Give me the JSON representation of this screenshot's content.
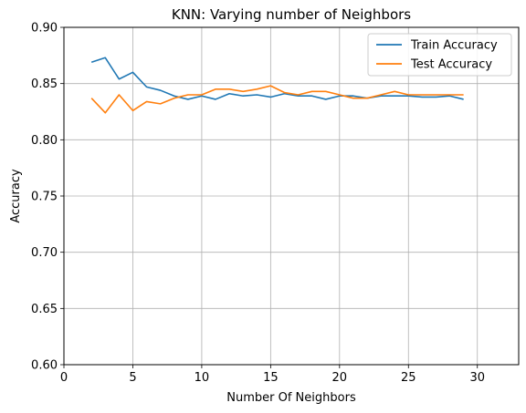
{
  "chart_data": {
    "type": "line",
    "title": "KNN: Varying number of Neighbors",
    "xlabel": "Number Of Neighbors",
    "ylabel": "Accuracy",
    "xlim": [
      0,
      33
    ],
    "ylim": [
      0.6,
      0.9
    ],
    "xticks": [
      0,
      5,
      10,
      15,
      20,
      25,
      30
    ],
    "xtick_labels": [
      "0",
      "5",
      "10",
      "15",
      "20",
      "25",
      "30"
    ],
    "yticks": [
      0.6,
      0.65,
      0.7,
      0.75,
      0.8,
      0.85,
      0.9
    ],
    "ytick_labels": [
      "0.60",
      "0.65",
      "0.70",
      "0.75",
      "0.80",
      "0.85",
      "0.90"
    ],
    "grid": true,
    "legend_position": "top-right",
    "x": [
      2,
      3,
      4,
      5,
      6,
      7,
      8,
      9,
      10,
      11,
      12,
      13,
      14,
      15,
      16,
      17,
      18,
      19,
      20,
      21,
      22,
      23,
      24,
      25,
      26,
      27,
      28,
      29
    ],
    "series": [
      {
        "name": "Train Accuracy",
        "color": "#1f77b4",
        "values": [
          0.869,
          0.873,
          0.854,
          0.86,
          0.847,
          0.844,
          0.839,
          0.836,
          0.839,
          0.836,
          0.841,
          0.839,
          0.84,
          0.838,
          0.841,
          0.839,
          0.839,
          0.836,
          0.839,
          0.839,
          0.837,
          0.839,
          0.839,
          0.839,
          0.838,
          0.838,
          0.839,
          0.836
        ]
      },
      {
        "name": "Test Accuracy",
        "color": "#ff7f0e",
        "values": [
          0.837,
          0.824,
          0.84,
          0.826,
          0.834,
          0.832,
          0.837,
          0.84,
          0.84,
          0.845,
          0.845,
          0.843,
          0.845,
          0.848,
          0.842,
          0.84,
          0.843,
          0.843,
          0.84,
          0.837,
          0.837,
          0.84,
          0.843,
          0.84,
          0.84,
          0.84,
          0.84,
          0.84
        ]
      }
    ]
  }
}
